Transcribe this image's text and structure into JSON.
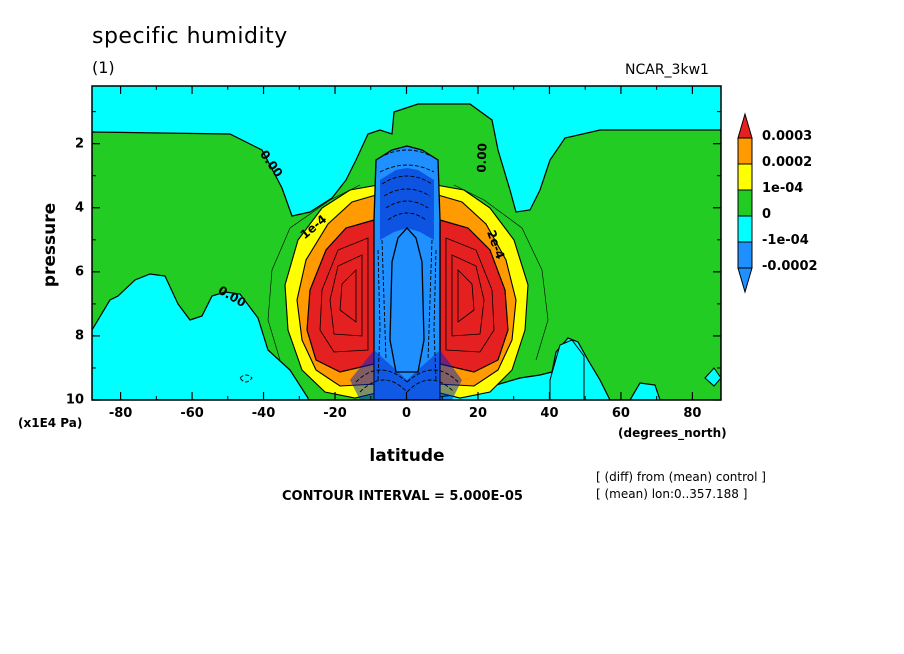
{
  "chart_data": {
    "type": "heatmap",
    "title": "specific humidity",
    "subtitle": "(1)",
    "model_label": "NCAR_3kw1",
    "xlabel": "latitude",
    "x_unit": "(degrees_north)",
    "ylabel": "pressure",
    "y_unit": "(x1E4 Pa)",
    "xlim": [
      -88,
      88
    ],
    "ylim": [
      10,
      0.2
    ],
    "x_ticks": [
      -80,
      -60,
      -40,
      -20,
      0,
      20,
      40,
      60,
      80
    ],
    "x_tick_labels": [
      "-80",
      "-60",
      "-40",
      "-20",
      "0",
      "20",
      "40",
      "60",
      "80"
    ],
    "y_ticks": [
      2,
      4,
      6,
      8,
      10
    ],
    "y_tick_labels": [
      "2",
      "4",
      "6",
      "8",
      "10"
    ],
    "contour_interval_text": "CONTOUR INTERVAL = 5.000E-05",
    "notes": [
      "[ (diff) from (mean) control ]",
      "[ (mean) lon:0..357.188 ]"
    ],
    "contour_labels": [
      "0.00",
      "0.00",
      "0.00",
      "1e-4",
      "2e-4"
    ],
    "legend": {
      "placement": "right",
      "levels": [
        "0.0003",
        "0.0002",
        "1e-04",
        "0",
        "-1e-04",
        "-0.0002"
      ],
      "colors": [
        "#e52020",
        "#ff9a00",
        "#ffff00",
        "#22cc22",
        "#00ffff",
        "#1e90ff"
      ]
    },
    "colors": {
      "below_neg1e4": "#1e90ff",
      "neg1e4_to_0": "#00ffff",
      "zero_to_1e4": "#22cc22",
      "1e4_to_2e4": "#ffff00",
      "2e4_to_3e4": "#ff9a00",
      "above_3e4": "#e52020",
      "deep_negative": "#0000cc"
    }
  }
}
